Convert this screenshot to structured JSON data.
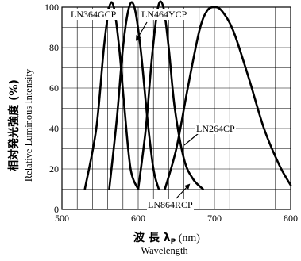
{
  "chart_data": {
    "type": "line",
    "xlim": [
      500,
      800
    ],
    "ylim": [
      0,
      100
    ],
    "x_ticks": [
      500,
      600,
      700,
      800
    ],
    "y_ticks": [
      0,
      20,
      40,
      60,
      80,
      100
    ],
    "grid": true,
    "xlabel": {
      "main_prefix": "波 長 λ",
      "main_sub": "P",
      "main_suffix": " (nm)",
      "secondary": "Wavelength"
    },
    "ylabel": {
      "main": "相対発光強度 (%)",
      "secondary": "Relative Luminous Intensity"
    },
    "series": [
      {
        "name": "LN364GCP",
        "x": [
          530,
          545,
          555,
          562,
          568,
          575,
          582,
          590,
          600
        ],
        "y": [
          10,
          40,
          80,
          100,
          100,
          80,
          50,
          20,
          10
        ]
      },
      {
        "name": "LN464YCP",
        "x": [
          562,
          572,
          580,
          588,
          595,
          603,
          612,
          620,
          627
        ],
        "y": [
          10,
          45,
          80,
          100,
          100,
          80,
          45,
          20,
          10
        ]
      },
      {
        "name": "LN864RCP",
        "x": [
          600,
          610,
          618,
          626,
          633,
          640,
          648,
          660,
          672,
          685
        ],
        "y": [
          10,
          40,
          75,
          100,
          100,
          80,
          50,
          25,
          15,
          10
        ]
      },
      {
        "name": "LN264CP",
        "x": [
          635,
          650,
          665,
          680,
          690,
          700,
          710,
          725,
          745,
          765,
          785,
          800
        ],
        "y": [
          10,
          30,
          60,
          88,
          98,
          100,
          98,
          88,
          65,
          40,
          22,
          12
        ]
      }
    ]
  }
}
